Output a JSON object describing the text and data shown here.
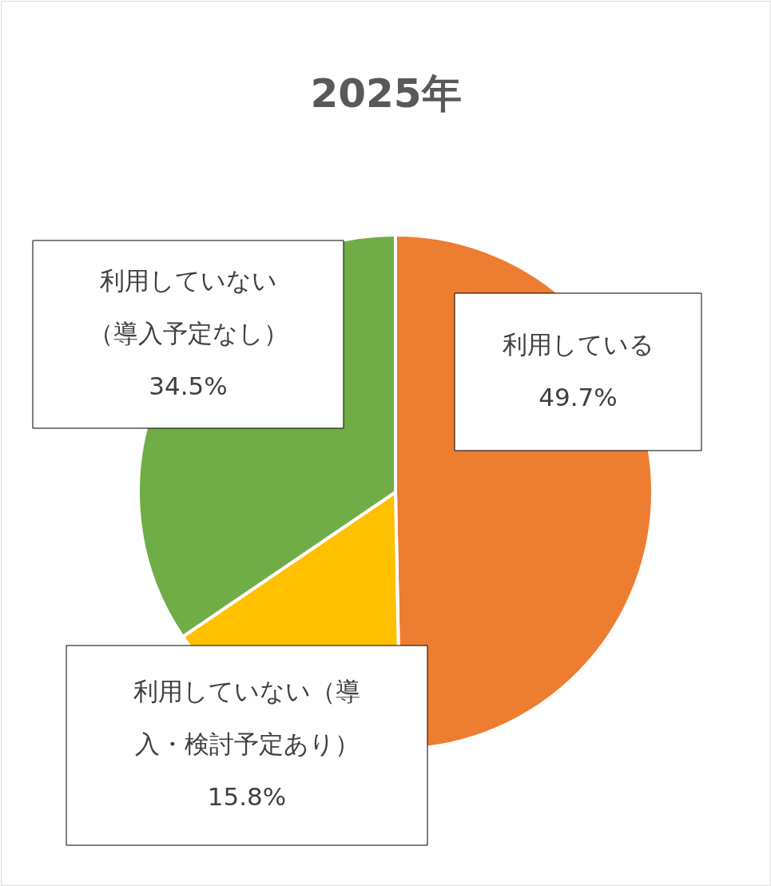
{
  "chart_data": {
    "type": "pie",
    "title": "2025年",
    "categories": [
      "利用している",
      "利用していない（導入・検討予定あり）",
      "利用していない（導入予定なし）"
    ],
    "values": [
      49.7,
      15.8,
      34.5
    ],
    "colors": [
      "#ed7d31",
      "#ffc000",
      "#70ad47"
    ],
    "value_labels": [
      "49.7%",
      "15.8%",
      "34.5%"
    ]
  }
}
